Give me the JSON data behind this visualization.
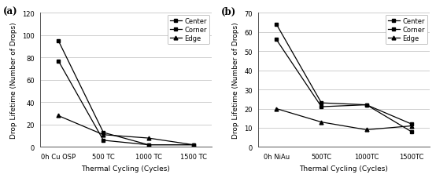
{
  "subplot_a": {
    "label": "(a)",
    "x_labels": [
      "0h Cu OSP",
      "500 TC",
      "1000 TC",
      "1500 TC"
    ],
    "x_positions": [
      0,
      1,
      2,
      3
    ],
    "ylim": [
      0,
      120
    ],
    "yticks": [
      0,
      20,
      40,
      60,
      80,
      100,
      120
    ],
    "ylabel": "Drop Lifetime (Number of Drops)",
    "xlabel": "Thermal Cycling (Cycles)",
    "series": [
      {
        "label": "Center",
        "values": [
          95,
          13,
          2,
          2
        ],
        "marker": "s",
        "linestyle": "-"
      },
      {
        "label": "Corner",
        "values": [
          77,
          6,
          2,
          2
        ],
        "marker": "s",
        "linestyle": "-"
      },
      {
        "label": "Edge",
        "values": [
          28,
          11,
          8,
          2
        ],
        "marker": "^",
        "linestyle": "-"
      }
    ]
  },
  "subplot_b": {
    "label": "(b)",
    "x_labels": [
      "0h NiAu",
      "500TC",
      "1000TC",
      "1500TC"
    ],
    "x_positions": [
      0,
      1,
      2,
      3
    ],
    "ylim": [
      0,
      70
    ],
    "yticks": [
      0,
      10,
      20,
      30,
      40,
      50,
      60,
      70
    ],
    "ylabel": "Drop Lifetime (Number of Drops)",
    "xlabel": "Thermal Cycling (Cycles)",
    "series": [
      {
        "label": "Center",
        "values": [
          64,
          23,
          22,
          12
        ],
        "marker": "s",
        "linestyle": "-"
      },
      {
        "label": "Corner",
        "values": [
          56,
          21,
          22,
          8
        ],
        "marker": "s",
        "linestyle": "-"
      },
      {
        "label": "Edge",
        "values": [
          20,
          13,
          9,
          11
        ],
        "marker": "^",
        "linestyle": "-"
      }
    ]
  },
  "line_color": "#000000",
  "background_color": "#ffffff",
  "grid_color": "#bbbbbb",
  "fontsize_label": 6.5,
  "fontsize_tick": 6,
  "fontsize_legend": 6,
  "fontsize_sublabel": 8.5
}
